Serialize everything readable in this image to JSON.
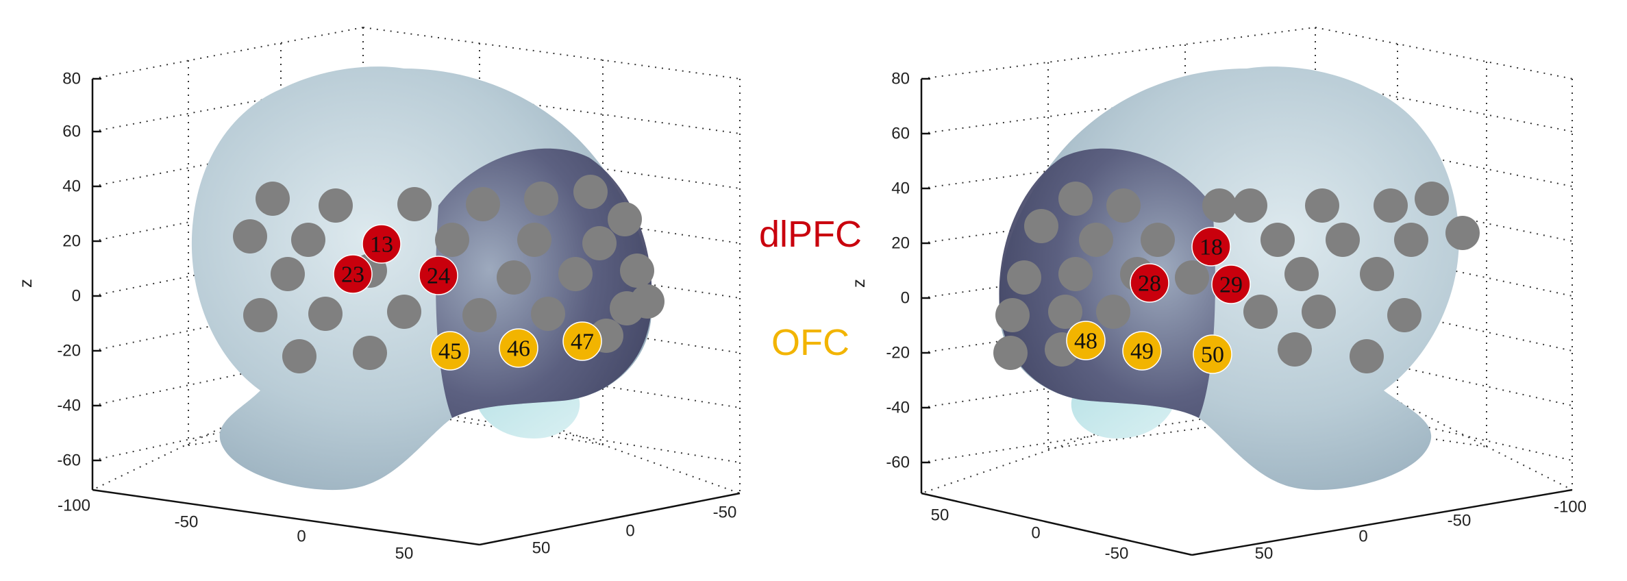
{
  "colors": {
    "brain_light": "#dde9ee",
    "brain_mid": "#b9ccd6",
    "brain_dark": "#545779",
    "electrode_grey": "#808080",
    "dlpfc_red": "#c9000d",
    "ofc_yellow": "#f2b400"
  },
  "regions": {
    "dlpfc": {
      "label": "dlPFC",
      "color": "#c9000d"
    },
    "ofc": {
      "label": "OFC",
      "color": "#f2b400"
    }
  },
  "left_panel": {
    "z_axis_label": "z",
    "z_ticks": [
      "80",
      "60",
      "40",
      "20",
      "0",
      "-20",
      "-40",
      "-60"
    ],
    "front_ticks": [
      "-100",
      "-50",
      "0",
      "50"
    ],
    "right_ticks": [
      "-50",
      "0",
      "50"
    ],
    "highlighted_electrodes": [
      {
        "id": "13",
        "region": "dlpfc"
      },
      {
        "id": "23",
        "region": "dlpfc"
      },
      {
        "id": "24",
        "region": "dlpfc"
      },
      {
        "id": "45",
        "region": "ofc"
      },
      {
        "id": "46",
        "region": "ofc"
      },
      {
        "id": "47",
        "region": "ofc"
      }
    ]
  },
  "right_panel": {
    "z_axis_label": "z",
    "z_ticks": [
      "80",
      "60",
      "40",
      "20",
      "0",
      "-20",
      "-40",
      "-60"
    ],
    "front_ticks": [
      "50",
      "0",
      "-50"
    ],
    "right_ticks": [
      "50",
      "0",
      "-50",
      "-100"
    ],
    "highlighted_electrodes": [
      {
        "id": "18",
        "region": "dlpfc"
      },
      {
        "id": "28",
        "region": "dlpfc"
      },
      {
        "id": "29",
        "region": "dlpfc"
      },
      {
        "id": "48",
        "region": "ofc"
      },
      {
        "id": "49",
        "region": "ofc"
      },
      {
        "id": "50",
        "region": "ofc"
      }
    ]
  }
}
